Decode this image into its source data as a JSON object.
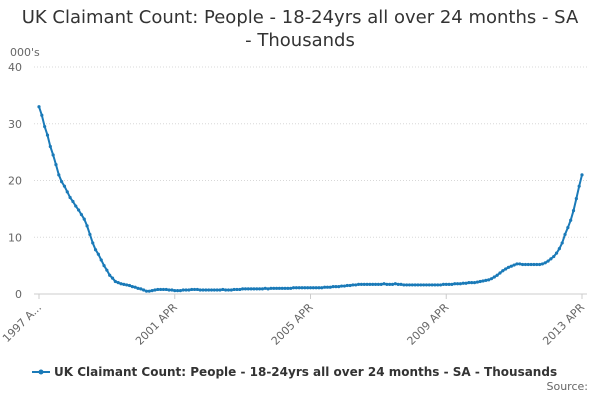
{
  "chart_data": {
    "type": "line",
    "title": "UK Claimant Count: People - 18-24yrs all over 24 months - SA - Thousands",
    "y_label": "000's",
    "source": "Source:",
    "categories": [
      "1997 A...",
      null,
      null,
      null,
      null,
      null,
      null,
      null,
      null,
      null,
      null,
      null,
      null,
      null,
      null,
      null,
      null,
      null,
      null,
      null,
      null,
      null,
      null,
      null,
      null,
      null,
      null,
      null,
      null,
      null,
      null,
      null,
      null,
      null,
      null,
      null,
      null,
      null,
      null,
      null,
      null,
      null,
      null,
      null,
      null,
      null,
      null,
      null,
      "2001 APR",
      null,
      null,
      null,
      null,
      null,
      null,
      null,
      null,
      null,
      null,
      null,
      null,
      null,
      null,
      null,
      null,
      null,
      null,
      null,
      null,
      null,
      null,
      null,
      null,
      null,
      null,
      null,
      null,
      null,
      null,
      null,
      null,
      null,
      null,
      null,
      null,
      null,
      null,
      null,
      null,
      null,
      null,
      null,
      null,
      null,
      null,
      null,
      "2005 APR",
      null,
      null,
      null,
      null,
      null,
      null,
      null,
      null,
      null,
      null,
      null,
      null,
      null,
      null,
      null,
      null,
      null,
      null,
      null,
      null,
      null,
      null,
      null,
      null,
      null,
      null,
      null,
      null,
      null,
      null,
      null,
      null,
      null,
      null,
      null,
      null,
      null,
      null,
      null,
      null,
      null,
      null,
      null,
      null,
      null,
      null,
      null,
      "2009 APR",
      null,
      null,
      null,
      null,
      null,
      null,
      null,
      null,
      null,
      null,
      null,
      null,
      null,
      null,
      null,
      null,
      null,
      null,
      null,
      null,
      null,
      null,
      null,
      null,
      null,
      null,
      null,
      null,
      null,
      null,
      null,
      null,
      null,
      null,
      null,
      null,
      null,
      null,
      null,
      null,
      null,
      null,
      null,
      null,
      null,
      null,
      null,
      "2013 APR"
    ],
    "series": [
      {
        "name": "UK Claimant Count: People - 18-24yrs all over 24 months - SA - Thousands",
        "color": "#1a7ab8",
        "values": [
          33,
          31.5,
          29.5,
          28,
          26,
          24.5,
          22.8,
          21,
          19.8,
          19,
          18,
          17,
          16.3,
          15.5,
          14.8,
          14,
          13.2,
          12,
          10.5,
          9,
          7.8,
          7,
          6,
          5,
          4.2,
          3.3,
          2.8,
          2.2,
          2,
          1.8,
          1.7,
          1.6,
          1.5,
          1.3,
          1.2,
          1,
          0.9,
          0.7,
          0.5,
          0.5,
          0.6,
          0.7,
          0.8,
          0.8,
          0.8,
          0.8,
          0.7,
          0.7,
          0.6,
          0.6,
          0.6,
          0.7,
          0.7,
          0.7,
          0.8,
          0.8,
          0.8,
          0.7,
          0.7,
          0.7,
          0.7,
          0.7,
          0.7,
          0.7,
          0.7,
          0.8,
          0.7,
          0.7,
          0.7,
          0.8,
          0.8,
          0.8,
          0.9,
          0.9,
          0.9,
          0.9,
          0.9,
          0.9,
          0.9,
          0.9,
          1,
          0.9,
          1,
          1,
          1,
          1,
          1,
          1,
          1,
          1,
          1.1,
          1.1,
          1.1,
          1.1,
          1.1,
          1.1,
          1.1,
          1.1,
          1.1,
          1.1,
          1.1,
          1.2,
          1.2,
          1.2,
          1.3,
          1.3,
          1.3,
          1.4,
          1.4,
          1.5,
          1.5,
          1.6,
          1.6,
          1.7,
          1.7,
          1.7,
          1.7,
          1.7,
          1.7,
          1.7,
          1.7,
          1.7,
          1.8,
          1.7,
          1.7,
          1.7,
          1.8,
          1.7,
          1.7,
          1.6,
          1.6,
          1.6,
          1.6,
          1.6,
          1.6,
          1.6,
          1.6,
          1.6,
          1.6,
          1.6,
          1.6,
          1.6,
          1.6,
          1.7,
          1.7,
          1.7,
          1.7,
          1.8,
          1.8,
          1.8,
          1.9,
          1.9,
          2,
          2,
          2,
          2.1,
          2.2,
          2.3,
          2.4,
          2.5,
          2.7,
          3,
          3.3,
          3.7,
          4.1,
          4.4,
          4.7,
          4.9,
          5.1,
          5.3,
          5.3,
          5.2,
          5.2,
          5.2,
          5.2,
          5.2,
          5.2,
          5.2,
          5.3,
          5.5,
          5.8,
          6.2,
          6.6,
          7.2,
          8,
          9,
          10.5,
          11.7,
          13,
          14.7,
          16.8,
          19,
          21
        ]
      }
    ],
    "ylim": [
      0,
      40
    ],
    "yticks": [
      0,
      10,
      20,
      30,
      40
    ],
    "grid": true,
    "legend": "bottom"
  }
}
